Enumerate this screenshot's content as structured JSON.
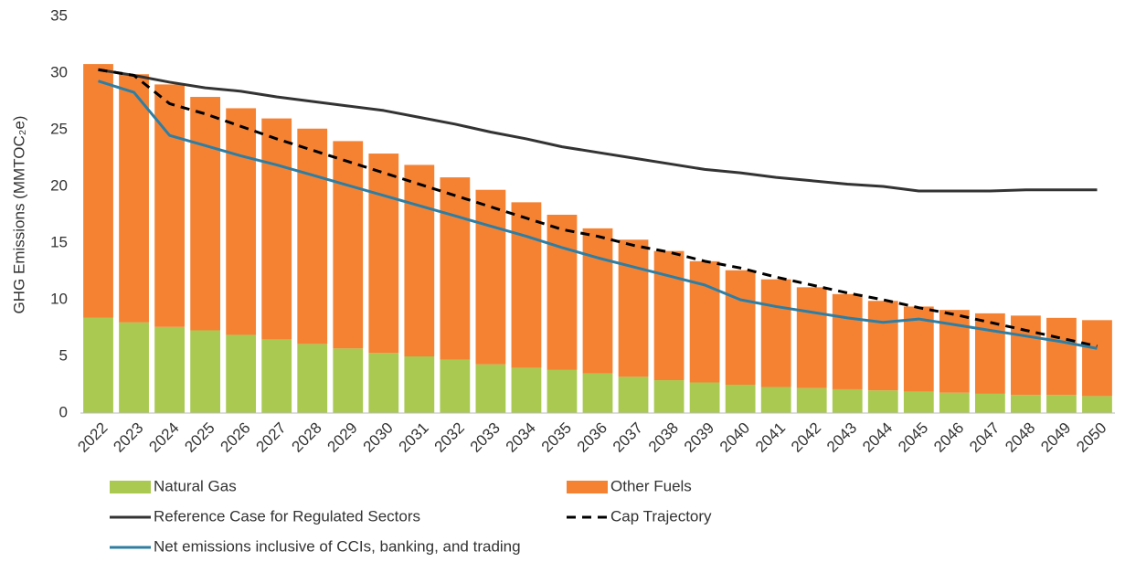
{
  "chart_data": {
    "type": "bar",
    "stacked": true,
    "y_label": "GHG Emissions (MMTOC₂e)",
    "categories": [
      "2022",
      "2023",
      "2024",
      "2025",
      "2026",
      "2027",
      "2028",
      "2029",
      "2030",
      "2031",
      "2032",
      "2033",
      "2034",
      "2035",
      "2036",
      "2037",
      "2038",
      "2039",
      "2040",
      "2041",
      "2042",
      "2043",
      "2044",
      "2045",
      "2046",
      "2047",
      "2048",
      "2049",
      "2050"
    ],
    "ylim": [
      0,
      35
    ],
    "yticks": [
      0,
      5,
      10,
      15,
      20,
      25,
      30,
      35
    ],
    "grid": false,
    "series": [
      {
        "name": "Natural Gas",
        "type": "bar",
        "color": "#a9c951",
        "values": [
          8.4,
          8.0,
          7.6,
          7.3,
          6.9,
          6.5,
          6.1,
          5.7,
          5.3,
          5.0,
          4.7,
          4.3,
          4.0,
          3.8,
          3.5,
          3.2,
          2.9,
          2.7,
          2.5,
          2.3,
          2.2,
          2.1,
          2.0,
          1.9,
          1.8,
          1.7,
          1.6,
          1.6,
          1.5
        ]
      },
      {
        "name": "Other Fuels",
        "type": "bar",
        "color": "#f58233",
        "values": [
          22.4,
          21.9,
          21.4,
          20.6,
          20.0,
          19.5,
          19.0,
          18.3,
          17.6,
          16.9,
          16.1,
          15.4,
          14.6,
          13.7,
          12.8,
          12.1,
          11.4,
          10.7,
          10.1,
          9.5,
          8.9,
          8.4,
          7.9,
          7.5,
          7.3,
          7.1,
          7.0,
          6.8,
          6.7
        ]
      },
      {
        "name": "Reference Case for Regulated Sectors",
        "type": "line",
        "color": "#333333",
        "dashed": false,
        "values": [
          30.3,
          29.8,
          29.2,
          28.7,
          28.4,
          27.9,
          27.5,
          27.1,
          26.7,
          26.1,
          25.5,
          24.8,
          24.2,
          23.5,
          23.0,
          22.5,
          22.0,
          21.5,
          21.2,
          20.8,
          20.5,
          20.2,
          20.0,
          19.6,
          19.6,
          19.6,
          19.7,
          19.7,
          19.7
        ]
      },
      {
        "name": "Cap Trajectory",
        "type": "line",
        "color": "#000000",
        "dashed": true,
        "values": [
          30.3,
          29.8,
          27.3,
          26.4,
          25.3,
          24.2,
          23.2,
          22.2,
          21.2,
          20.2,
          19.2,
          18.2,
          17.2,
          16.2,
          15.6,
          14.8,
          14.2,
          13.4,
          12.8,
          12.0,
          11.3,
          10.6,
          10.0,
          9.3,
          8.7,
          8.0,
          7.3,
          6.6,
          5.9
        ]
      },
      {
        "name": "Net emissions inclusive of CCIs, banking, and trading",
        "type": "line",
        "color": "#2e7ea3",
        "dashed": false,
        "values": [
          29.3,
          28.3,
          24.5,
          23.6,
          22.7,
          21.9,
          21.0,
          20.1,
          19.2,
          18.3,
          17.4,
          16.5,
          15.6,
          14.6,
          13.7,
          12.9,
          12.1,
          11.3,
          10.0,
          9.4,
          8.9,
          8.4,
          8.0,
          8.3,
          7.8,
          7.3,
          6.8,
          6.3,
          5.7
        ]
      }
    ]
  }
}
